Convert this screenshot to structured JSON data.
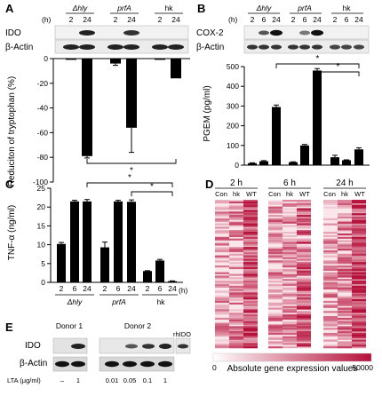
{
  "panels": {
    "A": {
      "letter": "A",
      "hours_label": "(h)",
      "group_labels": [
        "Δhly",
        "prfA",
        "hk"
      ],
      "blot_labels": [
        "IDO",
        "β-Actin"
      ],
      "chart_data": {
        "type": "bar",
        "ylabel": "Reduciton of tryptophan (%)",
        "ylim": [
          -100,
          0
        ],
        "yticks": [
          0,
          -20,
          -40,
          -60,
          -80,
          -100
        ],
        "categories": [
          "Δhly 2",
          "Δhly 24",
          "prfA 2",
          "prfA 24",
          "hk 2",
          "hk 24"
        ],
        "values": [
          -1,
          -79,
          -4,
          -56,
          -1,
          -16
        ],
        "errors": [
          0,
          1.5,
          1.5,
          20,
          0,
          0
        ],
        "significance": "*"
      }
    },
    "B": {
      "letter": "B",
      "hours_label": "(h)",
      "group_labels": [
        "Δhly",
        "prfA",
        "hk"
      ],
      "blot_labels": [
        "COX-2",
        "β-Actin"
      ],
      "chart_data": {
        "type": "bar",
        "ylabel": "PGEM (pg/ml)",
        "ylim": [
          0,
          500
        ],
        "yticks": [
          0,
          100,
          200,
          300,
          400,
          500
        ],
        "categories": [
          "Δhly 2",
          "Δhly 6",
          "Δhly 24",
          "prfA 2",
          "prfA 6",
          "prfA 24",
          "hk 2",
          "hk 6",
          "hk 24"
        ],
        "values": [
          10,
          20,
          295,
          15,
          100,
          480,
          40,
          25,
          80
        ],
        "errors": [
          2,
          3,
          10,
          2,
          5,
          10,
          10,
          2,
          8
        ],
        "significance": [
          "*",
          "*"
        ]
      }
    },
    "C": {
      "letter": "C",
      "hours_label": "(h)",
      "group_labels": [
        "Δhly",
        "prfA",
        "hk"
      ],
      "chart_data": {
        "type": "bar",
        "ylabel": "TNF-α (ng/ml)",
        "ylim": [
          0,
          25
        ],
        "yticks": [
          0,
          5,
          10,
          15,
          20,
          25
        ],
        "categories": [
          "2",
          "6",
          "24",
          "2",
          "6",
          "24",
          "2",
          "6",
          "24"
        ],
        "values": [
          10.2,
          21.5,
          21.5,
          9.3,
          21.5,
          21.4,
          3.0,
          5.8,
          0.3
        ],
        "errors": [
          0.4,
          0.3,
          0.5,
          1.4,
          0.3,
          0.5,
          0.1,
          0.3,
          0.1
        ],
        "significance": [
          "*",
          "*"
        ]
      }
    },
    "D": {
      "letter": "D",
      "timepoints": [
        "2 h",
        "6 h",
        "24 h"
      ],
      "columns": [
        "Con",
        "hk",
        "WT"
      ],
      "scale_title": "Absolute gene expression values",
      "scale_min": "0",
      "scale_max": "50000",
      "low_color": "#ffffff",
      "high_color": "#b5103a"
    },
    "E": {
      "letter": "E",
      "donors": [
        "Donor 1",
        "Donor 2"
      ],
      "control_lane": "rhIDO",
      "blot_labels": [
        "IDO",
        "β-Actin"
      ],
      "lta_label": "LTA (μg/ml)",
      "lta_values": [
        "–",
        "1",
        "0.01",
        "0.05",
        "0.1",
        "1"
      ]
    }
  }
}
